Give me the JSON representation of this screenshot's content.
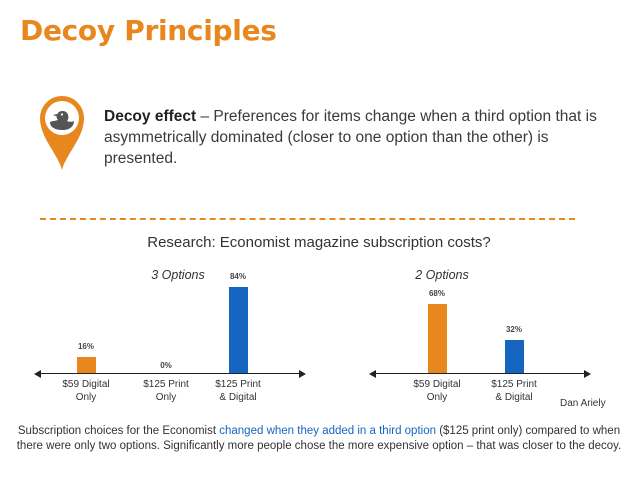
{
  "title": "Decoy Principles",
  "definition": {
    "term": "Decoy effect",
    "text": " – Preferences for items change when a third option that is asymmetrically dominated (closer to one option than the other) is presented."
  },
  "research_heading": "Research: Economist magazine subscription costs?",
  "credit": "Dan Ariely",
  "summary": {
    "part1": "Subscription choices for the Economist ",
    "highlight": "changed when they added in a third option",
    "part2": " ($125 print only) compared to when there were only two options.  Significantly more people chose the more expensive option – that was closer to the decoy."
  },
  "colors": {
    "accent": "#E8871E",
    "blue": "#1565C0"
  },
  "icon": "duck-location-pin-icon",
  "chart_data": [
    {
      "type": "bar",
      "title": "3 Options",
      "categories": [
        "$59 Digital Only",
        "$125 Print Only",
        "$125 Print & Digital"
      ],
      "category_lines": [
        [
          "$59 Digital",
          "Only"
        ],
        [
          "$125 Print",
          "Only"
        ],
        [
          "$125 Print",
          "& Digital"
        ]
      ],
      "values": [
        16,
        0,
        84
      ],
      "value_labels": [
        "16%",
        "0%",
        "84%"
      ],
      "colors": [
        "#E8871E",
        "#E8871E",
        "#1565C0"
      ],
      "ylim": [
        0,
        100
      ]
    },
    {
      "type": "bar",
      "title": "2 Options",
      "categories": [
        "$59 Digital Only",
        "$125 Print & Digital"
      ],
      "category_lines": [
        [
          "$59 Digital",
          "Only"
        ],
        [
          "$125 Print",
          "& Digital"
        ]
      ],
      "values": [
        68,
        32
      ],
      "value_labels": [
        "68%",
        "32%"
      ],
      "colors": [
        "#E8871E",
        "#1565C0"
      ],
      "ylim": [
        0,
        100
      ]
    }
  ]
}
